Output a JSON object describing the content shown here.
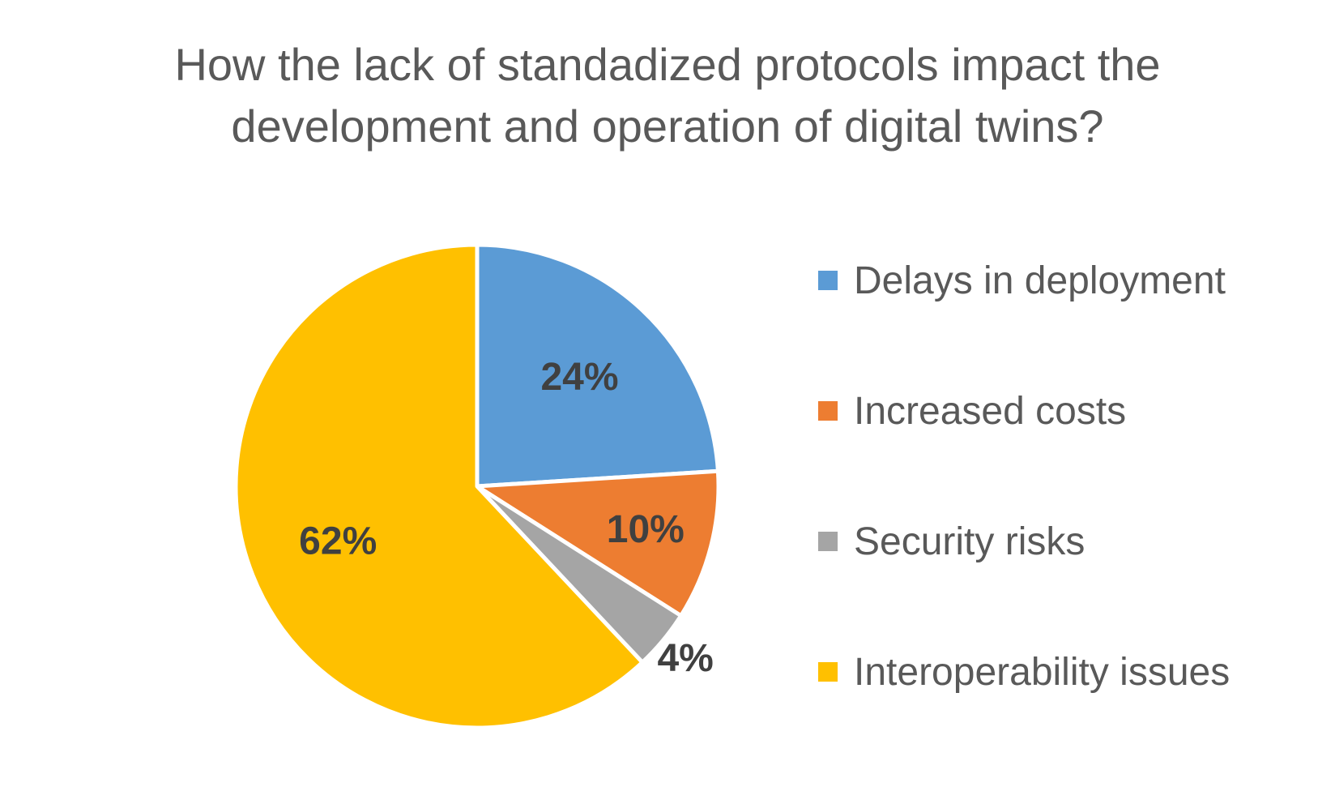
{
  "chart_data": {
    "type": "pie",
    "title_lines": [
      "How the lack of standadized protocols impact the",
      "development and operation of digital twins?"
    ],
    "categories": [
      "Delays in deployment",
      "Increased costs",
      "Security risks",
      "Interoperability issues"
    ],
    "values": [
      24,
      10,
      4,
      62
    ],
    "data_labels": [
      "24%",
      "10%",
      "4%",
      "62%"
    ],
    "colors": [
      "#5B9BD5",
      "#ED7D31",
      "#A5A5A5",
      "#FFC000"
    ],
    "legend_position": "right"
  }
}
